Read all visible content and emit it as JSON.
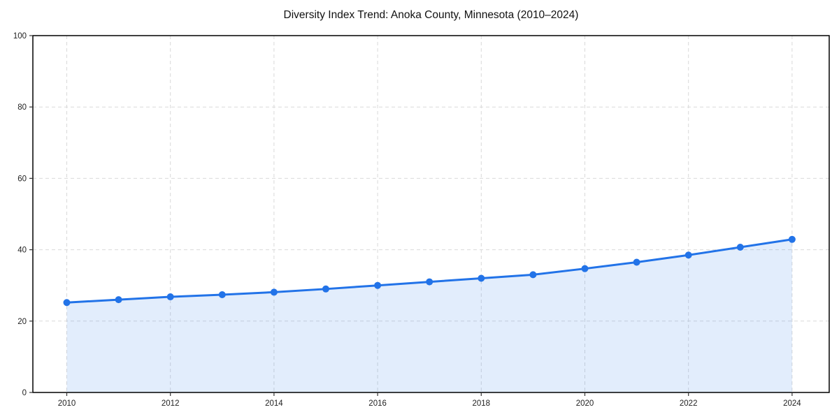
{
  "chart_data": {
    "type": "line",
    "title": "Diversity Index Trend: Anoka County, Minnesota (2010–2024)",
    "xlabel": "",
    "ylabel": "",
    "x": [
      2010,
      2011,
      2012,
      2013,
      2014,
      2015,
      2016,
      2017,
      2018,
      2019,
      2020,
      2021,
      2022,
      2023,
      2024
    ],
    "series": [
      {
        "name": "Diversity Index",
        "values": [
          25.2,
          26.0,
          26.8,
          27.4,
          28.1,
          29.0,
          30.0,
          31.0,
          32.0,
          33.0,
          34.7,
          36.5,
          38.5,
          40.7,
          42.9
        ]
      }
    ],
    "ylim": [
      0,
      100
    ],
    "yticks": [
      0,
      20,
      40,
      60,
      80,
      100
    ],
    "xticks": [
      2010,
      2012,
      2014,
      2016,
      2018,
      2020,
      2022,
      2024
    ],
    "grid": true,
    "legend": "none",
    "line_color": "#2273e8",
    "fill_color": "rgba(34,115,232,0.13)",
    "grid_color": "#d9d9d9",
    "spine_color": "#000000",
    "tick_label_color": "#222222",
    "marker": "circle"
  }
}
